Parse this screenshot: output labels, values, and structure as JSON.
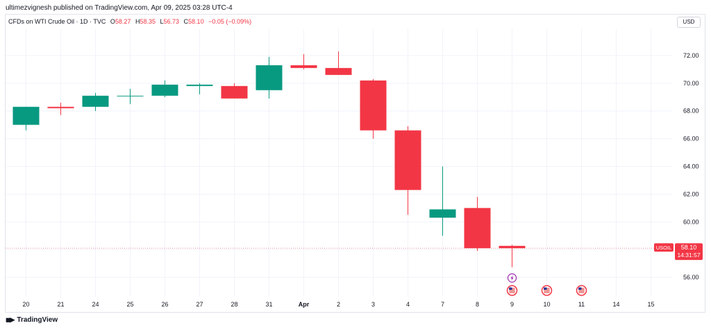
{
  "header": {
    "publisher_line": "ultimezvignesh published on TradingView.com, Apr 09, 2025 03:28 UTC-4"
  },
  "legend": {
    "symbol_desc": "CFDs on WTI Crude Oil · 1D · TVC",
    "open_label": "O",
    "open_value": "58.27",
    "high_label": "H",
    "high_value": "58.35",
    "low_label": "L",
    "low_value": "56.73",
    "close_label": "C",
    "close_value": "58.10",
    "change_value": "−0.05 (−0.09%)"
  },
  "currency": "USD",
  "price_tag": {
    "symbol": "USOIL",
    "price": "58.10",
    "countdown": "14:31:57"
  },
  "footer": {
    "brand": "TradingView"
  },
  "colors": {
    "up": "#089981",
    "down": "#f23645",
    "grid": "#f0f3fa",
    "text": "#131722"
  },
  "chart_data": {
    "type": "candlestick",
    "ylim": [
      54.6,
      73.9
    ],
    "y_ticks": [
      "72.00",
      "70.00",
      "68.00",
      "66.00",
      "64.00",
      "62.00",
      "60.00",
      "58.00",
      "56.00"
    ],
    "x_labels": [
      "20",
      "21",
      "24",
      "25",
      "26",
      "27",
      "28",
      "31",
      "Apr",
      "2",
      "3",
      "4",
      "7",
      "8",
      "9",
      "10",
      "11",
      "14",
      "15"
    ],
    "last_price": 58.1,
    "candles": [
      {
        "label": "20",
        "open": 67.0,
        "high": 68.3,
        "low": 66.6,
        "close": 68.3
      },
      {
        "label": "21",
        "open": 68.3,
        "high": 68.6,
        "low": 67.7,
        "close": 68.2
      },
      {
        "label": "24",
        "open": 68.3,
        "high": 69.3,
        "low": 68.0,
        "close": 69.1
      },
      {
        "label": "25",
        "open": 69.1,
        "high": 69.6,
        "low": 68.5,
        "close": 69.1
      },
      {
        "label": "26",
        "open": 69.1,
        "high": 70.2,
        "low": 69.0,
        "close": 69.9
      },
      {
        "label": "27",
        "open": 69.8,
        "high": 70.0,
        "low": 69.2,
        "close": 69.9
      },
      {
        "label": "28",
        "open": 69.8,
        "high": 70.0,
        "low": 68.9,
        "close": 68.9
      },
      {
        "label": "31",
        "open": 69.5,
        "high": 71.9,
        "low": 68.9,
        "close": 71.3
      },
      {
        "label": "Apr",
        "open": 71.3,
        "high": 72.1,
        "low": 71.0,
        "close": 71.1
      },
      {
        "label": "2",
        "open": 71.1,
        "high": 72.3,
        "low": 70.6,
        "close": 70.6
      },
      {
        "label": "3",
        "open": 70.2,
        "high": 70.3,
        "low": 66.0,
        "close": 66.6
      },
      {
        "label": "4",
        "open": 66.6,
        "high": 66.9,
        "low": 60.5,
        "close": 62.3
      },
      {
        "label": "7",
        "open": 60.3,
        "high": 64.0,
        "low": 59.0,
        "close": 60.9
      },
      {
        "label": "8",
        "open": 61.0,
        "high": 61.8,
        "low": 57.9,
        "close": 58.1
      },
      {
        "label": "9",
        "open": 58.27,
        "high": 58.35,
        "low": 56.73,
        "close": 58.1
      }
    ],
    "events": [
      {
        "label": "9",
        "kind": "lightning",
        "row": 0
      },
      {
        "label": "9",
        "kind": "us-flag",
        "row": 1
      },
      {
        "label": "10",
        "kind": "us-flag",
        "row": 1
      },
      {
        "label": "11",
        "kind": "us-flag",
        "row": 1
      }
    ]
  }
}
